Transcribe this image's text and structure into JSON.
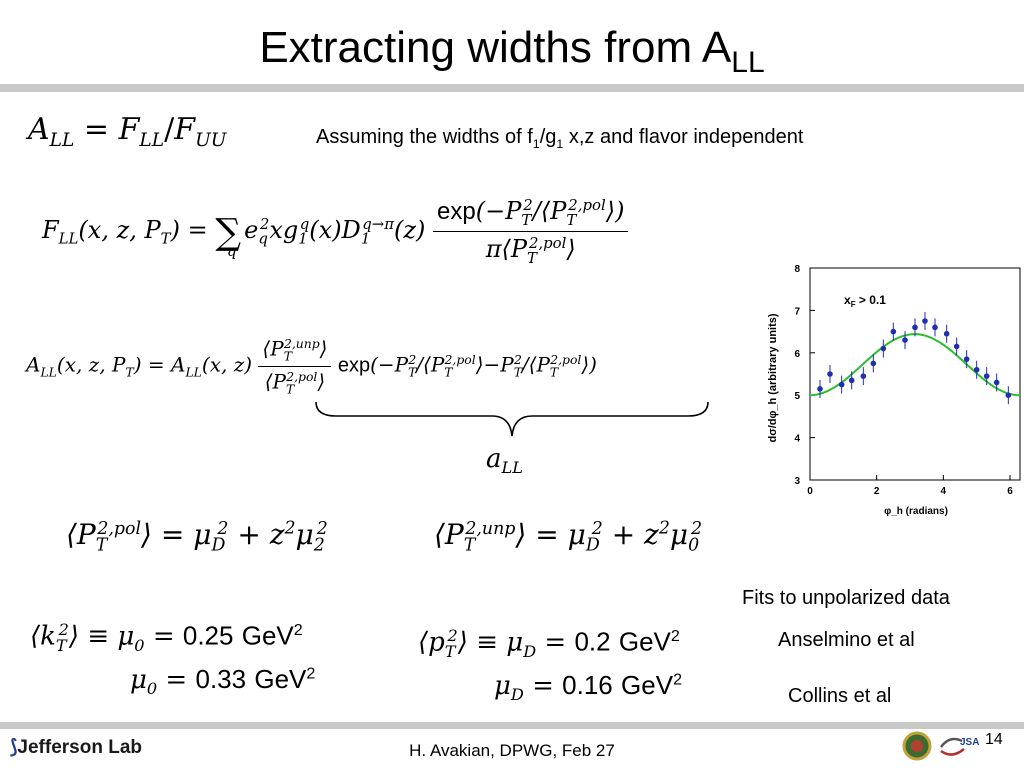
{
  "title": {
    "main": "Extracting widths from A",
    "sub": "LL"
  },
  "assumption": {
    "pre": "Assuming the widths of f",
    "s1": "1",
    "mid": "/g",
    "s2": "1",
    "post": " x,z and flavor independent"
  },
  "underbrace_label": "a",
  "underbrace_sub": "LL",
  "notes": {
    "fits": "Fits to unpolarized data",
    "anselmino": "Anselmino et al",
    "collins": "Collins et al"
  },
  "values": {
    "mu0_a": "0.25",
    "mu0_b": "0.33",
    "muD_a": "0.2",
    "muD_b": "0.16",
    "unit": "GeV"
  },
  "footer": {
    "text": "H. Avakian, DPWG, Feb 27",
    "page": "14",
    "logo": "Jefferson Lab"
  },
  "colors": {
    "points": "#1f2fb0",
    "fit": "#2bbf2b",
    "rule": "#c9c9c9"
  },
  "chart_data": {
    "type": "scatter",
    "annotation": "x_F > 0.1",
    "xlabel": "φ_h (radians)",
    "ylabel": "dσ/dφ_h (arbitrary units)",
    "xlim": [
      0,
      6.3
    ],
    "ylim": [
      3,
      8
    ],
    "xticks": [
      "0",
      "2",
      "4",
      "6"
    ],
    "yticks": [
      "3",
      "4",
      "5",
      "6",
      "7",
      "8"
    ],
    "series": [
      {
        "x": [
          0.3,
          0.6,
          0.95,
          1.25,
          1.6,
          1.9,
          2.2,
          2.5,
          2.85,
          3.15,
          3.45,
          3.75,
          4.1,
          4.4,
          4.7,
          5.0,
          5.3,
          5.6,
          5.95
        ],
        "y": [
          5.15,
          5.5,
          5.25,
          5.35,
          5.45,
          5.75,
          6.1,
          6.5,
          6.3,
          6.6,
          6.75,
          6.6,
          6.45,
          6.15,
          5.85,
          5.6,
          5.45,
          5.3,
          5.0
        ]
      }
    ],
    "fit": {
      "type": "cos",
      "a": 5.72,
      "b": -0.72,
      "period": 6.283
    }
  }
}
